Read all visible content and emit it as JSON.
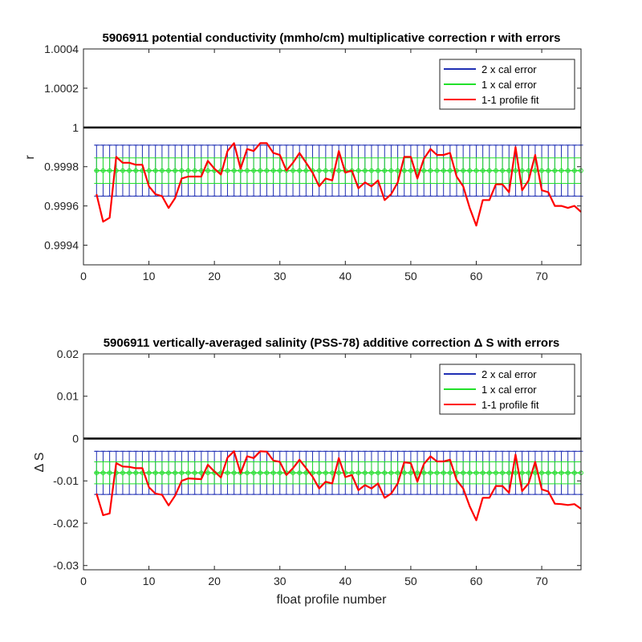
{
  "chart_data": [
    {
      "type": "line",
      "title": "5906911 potential conductivity (mmho/cm) multiplicative correction r with errors",
      "xlabel": "",
      "ylabel": "r",
      "xlim": [
        0,
        76
      ],
      "ylim": [
        0.9993,
        1.0004
      ],
      "xticks": [
        0,
        10,
        20,
        30,
        40,
        50,
        60,
        70
      ],
      "yticks": [
        0.9994,
        0.9996,
        0.9998,
        1,
        1.0002,
        1.0004
      ],
      "ytick_labels": [
        "0.9994",
        "0.9996",
        "0.9998",
        "1",
        "1.0002",
        "1.0004"
      ],
      "reference_line": 1,
      "legend": {
        "position": "top-right",
        "entries": [
          "2 x cal error",
          "1 x cal error",
          "1-1 profile fit"
        ]
      },
      "colors": {
        "cal2": "#1f2fb4",
        "cal1": "#22e02a",
        "fit": "#ff0000",
        "ref": "#000000"
      },
      "error_band": {
        "mean": 0.99978,
        "err1": 6.5e-05,
        "err2": 0.00013
      },
      "series": [
        {
          "name": "1-1 profile fit",
          "x": [
            2,
            3,
            4,
            5,
            6,
            7,
            8,
            9,
            10,
            11,
            12,
            13,
            14,
            15,
            16,
            17,
            18,
            19,
            20,
            21,
            22,
            23,
            24,
            25,
            26,
            27,
            28,
            29,
            30,
            31,
            32,
            33,
            34,
            35,
            36,
            37,
            38,
            39,
            40,
            41,
            42,
            43,
            44,
            45,
            46,
            47,
            48,
            49,
            50,
            51,
            52,
            53,
            54,
            55,
            56,
            57,
            58,
            59,
            60,
            61,
            62,
            63,
            64,
            65,
            66,
            67,
            68,
            69,
            70,
            71,
            72,
            73,
            74,
            75,
            76
          ],
          "y": [
            0.99966,
            0.99952,
            0.99954,
            0.99985,
            0.99982,
            0.99982,
            0.99981,
            0.99981,
            0.9997,
            0.99966,
            0.99965,
            0.99959,
            0.99964,
            0.99974,
            0.99975,
            0.99975,
            0.99975,
            0.99983,
            0.99979,
            0.99976,
            0.99988,
            0.99992,
            0.99979,
            0.99989,
            0.99988,
            0.99992,
            0.99992,
            0.99987,
            0.99986,
            0.99978,
            0.99982,
            0.99987,
            0.99982,
            0.99977,
            0.9997,
            0.99974,
            0.99973,
            0.99988,
            0.99977,
            0.99978,
            0.99969,
            0.99972,
            0.9997,
            0.99973,
            0.99963,
            0.99966,
            0.99972,
            0.99985,
            0.99985,
            0.99974,
            0.99984,
            0.99989,
            0.99986,
            0.99986,
            0.99987,
            0.99975,
            0.9997,
            0.99959,
            0.9995,
            0.99963,
            0.99963,
            0.99971,
            0.99971,
            0.99967,
            0.9999,
            0.99968,
            0.99973,
            0.99986,
            0.99968,
            0.99967,
            0.9996,
            0.9996,
            0.99959,
            0.9996,
            0.99957
          ]
        }
      ]
    },
    {
      "type": "line",
      "title": "5906911 vertically-averaged salinity (PSS-78) additive correction Δ S with errors",
      "xlabel": "float profile number",
      "ylabel": "Δ S",
      "xlim": [
        0,
        76
      ],
      "ylim": [
        -0.031,
        0.02
      ],
      "xticks": [
        0,
        10,
        20,
        30,
        40,
        50,
        60,
        70
      ],
      "yticks": [
        -0.03,
        -0.02,
        -0.01,
        0,
        0.01,
        0.02
      ],
      "ytick_labels": [
        "-0.03",
        "-0.02",
        "-0.01",
        "0",
        "0.01",
        "0.02"
      ],
      "reference_line": 0,
      "legend": {
        "position": "top-right",
        "entries": [
          "2 x cal error",
          "1 x cal error",
          "1-1 profile fit"
        ]
      },
      "colors": {
        "cal2": "#1f2fb4",
        "cal1": "#22e02a",
        "fit": "#ff0000",
        "ref": "#000000"
      },
      "error_band": {
        "mean": -0.0081,
        "err1": 0.0026,
        "err2": 0.0051
      },
      "series": [
        {
          "name": "1-1 profile fit",
          "x": [
            2,
            3,
            4,
            5,
            6,
            7,
            8,
            9,
            10,
            11,
            12,
            13,
            14,
            15,
            16,
            17,
            18,
            19,
            20,
            21,
            22,
            23,
            24,
            25,
            26,
            27,
            28,
            29,
            30,
            31,
            32,
            33,
            34,
            35,
            36,
            37,
            38,
            39,
            40,
            41,
            42,
            43,
            44,
            45,
            46,
            47,
            48,
            49,
            50,
            51,
            52,
            53,
            54,
            55,
            56,
            57,
            58,
            59,
            60,
            61,
            62,
            63,
            64,
            65,
            66,
            67,
            68,
            69,
            70,
            71,
            72,
            73,
            74,
            75,
            76
          ],
          "y": [
            -0.013,
            -0.0181,
            -0.0177,
            -0.0058,
            -0.0066,
            -0.0067,
            -0.007,
            -0.007,
            -0.0115,
            -0.013,
            -0.0133,
            -0.0158,
            -0.0135,
            -0.01,
            -0.0094,
            -0.0095,
            -0.0096,
            -0.0062,
            -0.0078,
            -0.0092,
            -0.0045,
            -0.003,
            -0.0082,
            -0.0042,
            -0.0046,
            -0.003,
            -0.0031,
            -0.0052,
            -0.0055,
            -0.0086,
            -0.007,
            -0.005,
            -0.007,
            -0.009,
            -0.0118,
            -0.0102,
            -0.0106,
            -0.0046,
            -0.0091,
            -0.0086,
            -0.0122,
            -0.011,
            -0.0118,
            -0.0106,
            -0.014,
            -0.013,
            -0.0106,
            -0.0056,
            -0.0058,
            -0.0102,
            -0.006,
            -0.0042,
            -0.0054,
            -0.0054,
            -0.005,
            -0.0098,
            -0.0118,
            -0.016,
            -0.0193,
            -0.014,
            -0.014,
            -0.0112,
            -0.0112,
            -0.0128,
            -0.0038,
            -0.0124,
            -0.0106,
            -0.0055,
            -0.012,
            -0.0125,
            -0.0154,
            -0.0155,
            -0.0157,
            -0.0155,
            -0.0166
          ]
        }
      ]
    }
  ]
}
